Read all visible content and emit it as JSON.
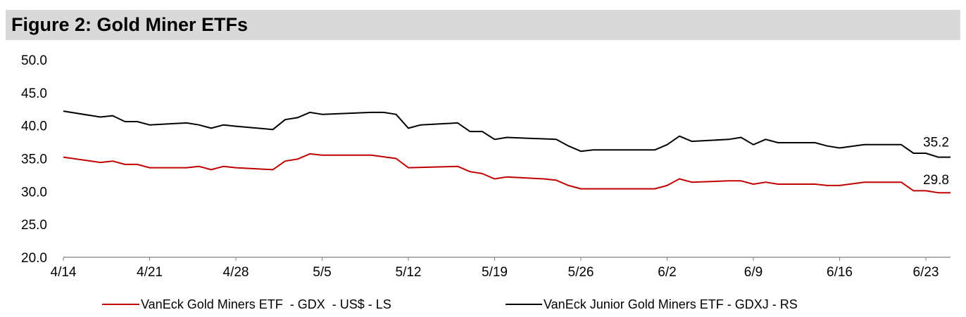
{
  "header": {
    "title": "Figure 2: Gold Miner ETFs"
  },
  "chart_data": {
    "type": "line",
    "title": "Figure 2: Gold Miner ETFs",
    "xlabel": "",
    "ylabel": "",
    "ylim": [
      20,
      50
    ],
    "y_ticks": [
      "20.0",
      "25.0",
      "30.0",
      "35.0",
      "40.0",
      "45.0",
      "50.0"
    ],
    "x_range": [
      0,
      70
    ],
    "x_ticks": [
      {
        "label": "4/14",
        "x": 0
      },
      {
        "label": "4/21",
        "x": 7
      },
      {
        "label": "4/28",
        "x": 14
      },
      {
        "label": "5/5",
        "x": 21
      },
      {
        "label": "5/12",
        "x": 28
      },
      {
        "label": "5/19",
        "x": 35
      },
      {
        "label": "5/26",
        "x": 42
      },
      {
        "label": "6/2",
        "x": 49
      },
      {
        "label": "6/9",
        "x": 56
      },
      {
        "label": "6/16",
        "x": 63
      },
      {
        "label": "6/23",
        "x": 70
      }
    ],
    "grid": false,
    "legend_position": "bottom",
    "series": [
      {
        "name": "VanEck Gold Miners ETF  - GDX  - US$ - LS",
        "color": "#c00000",
        "end_label": "29.8",
        "points": [
          [
            0,
            35.2
          ],
          [
            3,
            34.4
          ],
          [
            4,
            34.6
          ],
          [
            5,
            34.1
          ],
          [
            6,
            34.1
          ],
          [
            7,
            33.6
          ],
          [
            10,
            33.6
          ],
          [
            11,
            33.8
          ],
          [
            12,
            33.3
          ],
          [
            13,
            33.8
          ],
          [
            14,
            33.6
          ],
          [
            17,
            33.3
          ],
          [
            18,
            34.6
          ],
          [
            19,
            34.9
          ],
          [
            20,
            35.7
          ],
          [
            21,
            35.5
          ],
          [
            25,
            35.5
          ],
          [
            27,
            35.0
          ],
          [
            28,
            33.6
          ],
          [
            32,
            33.8
          ],
          [
            33,
            33.0
          ],
          [
            34,
            32.7
          ],
          [
            35,
            31.9
          ],
          [
            36,
            32.2
          ],
          [
            39,
            31.9
          ],
          [
            40,
            31.7
          ],
          [
            41,
            30.9
          ],
          [
            42,
            30.4
          ],
          [
            48,
            30.4
          ],
          [
            49,
            30.9
          ],
          [
            50,
            31.9
          ],
          [
            51,
            31.4
          ],
          [
            54,
            31.6
          ],
          [
            55,
            31.6
          ],
          [
            56,
            31.1
          ],
          [
            57,
            31.4
          ],
          [
            58,
            31.1
          ],
          [
            61,
            31.1
          ],
          [
            62,
            30.9
          ],
          [
            63,
            30.9
          ],
          [
            65,
            31.4
          ],
          [
            68,
            31.4
          ],
          [
            69,
            30.1
          ],
          [
            70,
            30.1
          ],
          [
            71,
            29.8
          ],
          [
            72,
            29.8
          ]
        ]
      },
      {
        "name": "VanEck Junior Gold Miners ETF - GDXJ - RS",
        "color": "#000000",
        "end_label": "35.2",
        "points": [
          [
            0,
            42.2
          ],
          [
            3,
            41.3
          ],
          [
            4,
            41.5
          ],
          [
            5,
            40.6
          ],
          [
            6,
            40.6
          ],
          [
            7,
            40.1
          ],
          [
            10,
            40.4
          ],
          [
            11,
            40.1
          ],
          [
            12,
            39.6
          ],
          [
            13,
            40.1
          ],
          [
            14,
            39.9
          ],
          [
            17,
            39.4
          ],
          [
            18,
            40.9
          ],
          [
            19,
            41.2
          ],
          [
            20,
            42.0
          ],
          [
            21,
            41.7
          ],
          [
            25,
            42.0
          ],
          [
            26,
            42.0
          ],
          [
            27,
            41.7
          ],
          [
            28,
            39.6
          ],
          [
            29,
            40.1
          ],
          [
            32,
            40.4
          ],
          [
            33,
            39.1
          ],
          [
            34,
            39.1
          ],
          [
            35,
            37.9
          ],
          [
            36,
            38.2
          ],
          [
            40,
            37.9
          ],
          [
            41,
            36.9
          ],
          [
            42,
            36.1
          ],
          [
            43,
            36.3
          ],
          [
            48,
            36.3
          ],
          [
            49,
            37.1
          ],
          [
            50,
            38.4
          ],
          [
            51,
            37.6
          ],
          [
            54,
            37.9
          ],
          [
            55,
            38.2
          ],
          [
            56,
            37.1
          ],
          [
            57,
            37.9
          ],
          [
            58,
            37.4
          ],
          [
            61,
            37.4
          ],
          [
            62,
            36.9
          ],
          [
            63,
            36.6
          ],
          [
            65,
            37.1
          ],
          [
            68,
            37.1
          ],
          [
            69,
            35.8
          ],
          [
            70,
            35.8
          ],
          [
            71,
            35.2
          ],
          [
            72,
            35.2
          ]
        ]
      }
    ]
  }
}
